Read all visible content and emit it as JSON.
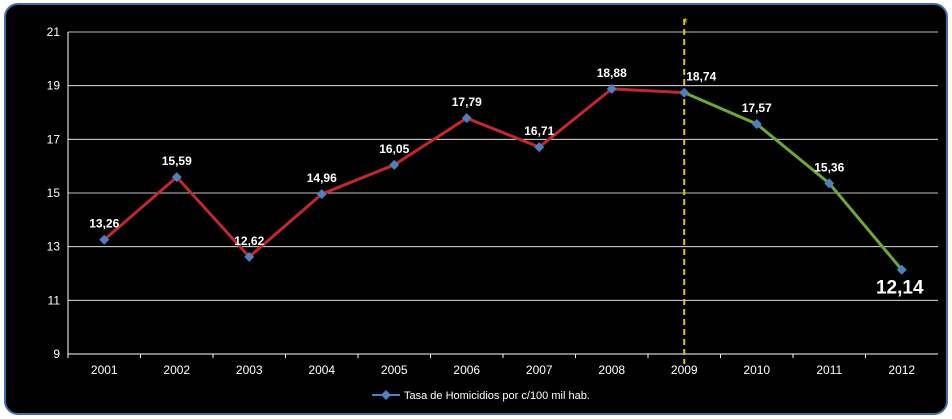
{
  "chart_data": {
    "type": "line",
    "categories": [
      "2001",
      "2002",
      "2003",
      "2004",
      "2005",
      "2006",
      "2007",
      "2008",
      "2009",
      "2010",
      "2011",
      "2012"
    ],
    "series": [
      {
        "name": "Tasa de Homicidios por c/100 mil hab.",
        "values": [
          13.26,
          15.59,
          12.62,
          14.96,
          16.05,
          17.79,
          16.71,
          18.88,
          18.74,
          17.57,
          15.36,
          12.14
        ],
        "value_labels": [
          "13,26",
          "15,59",
          "12,62",
          "14,96",
          "16,05",
          "17,79",
          "16,71",
          "18,88",
          "18,74",
          "17,57",
          "15,36",
          "12,14"
        ]
      }
    ],
    "ylim": [
      9,
      21
    ],
    "yticks": [
      "9",
      "11",
      "13",
      "15",
      "17",
      "19",
      "21"
    ],
    "grid": true,
    "legend": "bottom",
    "marker_line_label": "*",
    "colors": {
      "before": "#c0282d",
      "after": "#6aa83a",
      "marker": "#4f7fc0",
      "divider": "#e6c229",
      "grid": "#ffffff",
      "background": "#000000"
    }
  }
}
